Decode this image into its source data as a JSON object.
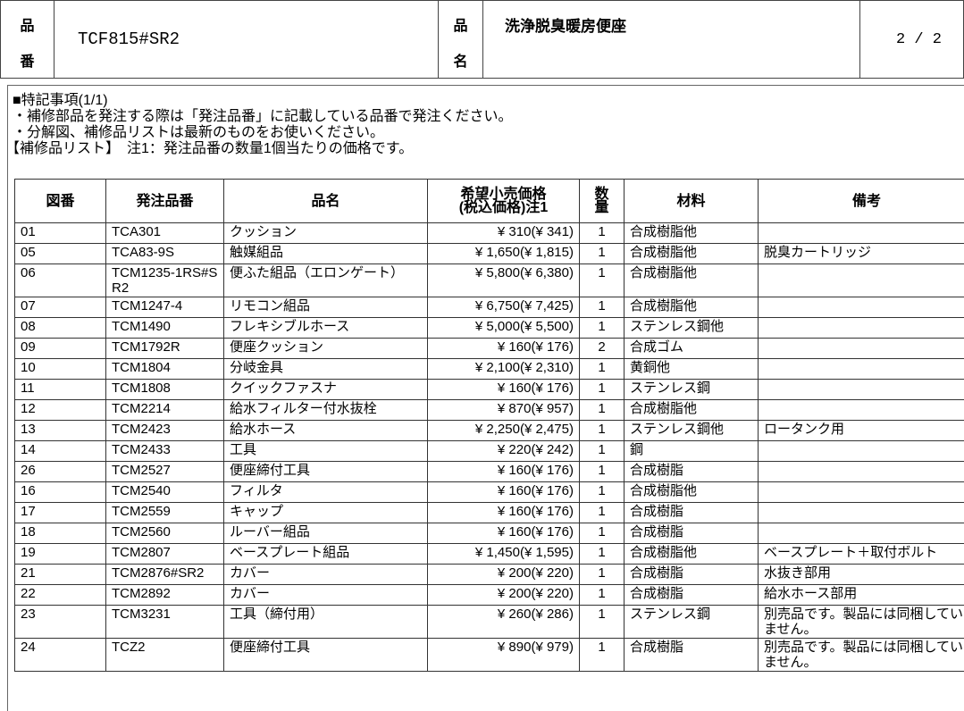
{
  "header": {
    "part_no_label": "品\n番",
    "part_no_label_1": "品",
    "part_no_label_2": "番",
    "part_no": "TCF815#SR2",
    "name_label_1": "品",
    "name_label_2": "名",
    "name": "洗浄脱臭暖房便座",
    "page": "2 / 2"
  },
  "notes": {
    "title": "■特記事項(1/1)",
    "lines": [
      "・補修部品を発注する際は「発注品番」に記載している品番で発注ください。",
      "・分解図、補修品リストは最新のものをお使いください。"
    ],
    "list_title": "【補修品リスト】　注1：発注品番の数量1個当たりの価格です。"
  },
  "table": {
    "columns": [
      "図番",
      "発注品番",
      "品名",
      "希望小売価格\n(税込価格)注1",
      "数\n量",
      "材料",
      "備考"
    ],
    "rows": [
      [
        "01",
        "TCA301",
        "クッション",
        "¥ 310(¥ 341)",
        "1",
        "合成樹脂他",
        ""
      ],
      [
        "05",
        "TCA83-9S",
        "触媒組品",
        "¥ 1,650(¥ 1,815)",
        "1",
        "合成樹脂他",
        "脱臭カートリッジ"
      ],
      [
        "06",
        "TCM1235-1RS#SR2",
        "便ふた組品（エロンゲート）",
        "¥ 5,800(¥ 6,380)",
        "1",
        "合成樹脂他",
        ""
      ],
      [
        "07",
        "TCM1247-4",
        "リモコン組品",
        "¥ 6,750(¥ 7,425)",
        "1",
        "合成樹脂他",
        ""
      ],
      [
        "08",
        "TCM1490",
        "フレキシブルホース",
        "¥ 5,000(¥ 5,500)",
        "1",
        "ステンレス鋼他",
        ""
      ],
      [
        "09",
        "TCM1792R",
        "便座クッション",
        "¥ 160(¥ 176)",
        "2",
        "合成ゴム",
        ""
      ],
      [
        "10",
        "TCM1804",
        "分岐金具",
        "¥ 2,100(¥ 2,310)",
        "1",
        "黄銅他",
        ""
      ],
      [
        "11",
        "TCM1808",
        "クイックファスナ",
        "¥ 160(¥ 176)",
        "1",
        "ステンレス鋼",
        ""
      ],
      [
        "12",
        "TCM2214",
        "給水フィルター付水抜栓",
        "¥ 870(¥ 957)",
        "1",
        "合成樹脂他",
        ""
      ],
      [
        "13",
        "TCM2423",
        "給水ホース",
        "¥ 2,250(¥ 2,475)",
        "1",
        "ステンレス鋼他",
        "ロータンク用"
      ],
      [
        "14",
        "TCM2433",
        "工具",
        "¥ 220(¥ 242)",
        "1",
        "鋼",
        ""
      ],
      [
        "26",
        "TCM2527",
        "便座締付工具",
        "¥ 160(¥ 176)",
        "1",
        "合成樹脂",
        ""
      ],
      [
        "16",
        "TCM2540",
        "フィルタ",
        "¥ 160(¥ 176)",
        "1",
        "合成樹脂他",
        ""
      ],
      [
        "17",
        "TCM2559",
        "キャップ",
        "¥ 160(¥ 176)",
        "1",
        "合成樹脂",
        ""
      ],
      [
        "18",
        "TCM2560",
        "ルーバー組品",
        "¥ 160(¥ 176)",
        "1",
        "合成樹脂",
        ""
      ],
      [
        "19",
        "TCM2807",
        "ベースプレート組品",
        "¥ 1,450(¥ 1,595)",
        "1",
        "合成樹脂他",
        "ベースプレート＋取付ボルト"
      ],
      [
        "21",
        "TCM2876#SR2",
        "カバー",
        "¥ 200(¥ 220)",
        "1",
        "合成樹脂",
        "水抜き部用"
      ],
      [
        "22",
        "TCM2892",
        "カバー",
        "¥ 200(¥ 220)",
        "1",
        "合成樹脂",
        "給水ホース部用"
      ],
      [
        "23",
        "TCM3231",
        "工具（締付用）",
        "¥ 260(¥ 286)",
        "1",
        "ステンレス鋼",
        "別売品です。製品には同梱していません。"
      ],
      [
        "24",
        "TCZ2",
        "便座締付工具",
        "¥ 890(¥ 979)",
        "1",
        "合成樹脂",
        "別売品です。製品には同梱していません。"
      ]
    ]
  }
}
